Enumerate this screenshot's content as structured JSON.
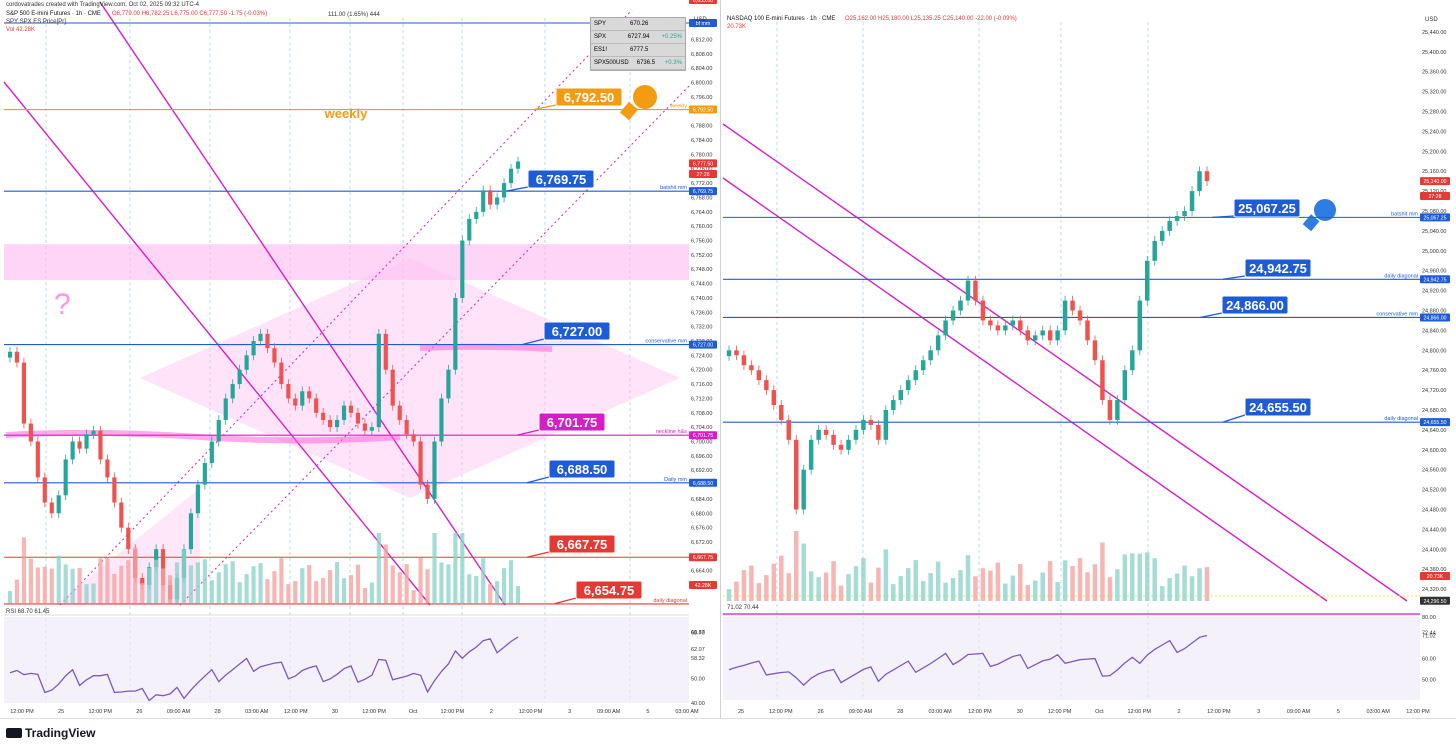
{
  "left": {
    "header": {
      "creator": "cordovatrades created with TradingView.com, Oct 02, 2025 09:32 UTC-4",
      "symbol": "S&P 500 E-mini Futures · 1h · CME",
      "ohlc": "O6,779.00 H6,782.25 L6,775.00 C6,777.50 -1.75 (-0.03%)",
      "indicator": "SPY SPX ES Price[Pr]",
      "vol": "Vol 42.28K",
      "range_note": "111.00 (1.65%) 444"
    },
    "price_axis_label": "USD",
    "table": [
      {
        "sym": "SPY",
        "val": "670.26",
        "chg": ""
      },
      {
        "sym": "SPX",
        "val": "6727.94",
        "chg": "+0.25%"
      },
      {
        "sym": "ES1!",
        "val": "6777.5",
        "chg": ""
      },
      {
        "sym": "SPX500USD",
        "val": "6736.5",
        "chg": "+0.3%"
      }
    ],
    "price_ticks": [
      "6,816.00",
      "6,812.00",
      "6,808.00",
      "6,804.00",
      "6,800.00",
      "6,796.00",
      "6,792.00",
      "6,788.00",
      "6,784.00",
      "6,780.00",
      "6,776.00",
      "6,772.00",
      "6,768.00",
      "6,764.00",
      "6,760.00",
      "6,756.00",
      "6,752.00",
      "6,748.00",
      "6,744.00",
      "6,740.00",
      "6,736.00",
      "6,732.00",
      "6,728.00",
      "6,724.00",
      "6,720.00",
      "6,716.00",
      "6,712.00",
      "6,708.00",
      "6,704.00",
      "6,700.00",
      "6,696.00",
      "6,692.00",
      "6,688.00",
      "6,684.00",
      "6,680.00",
      "6,676.00",
      "6,672.00",
      "6,668.00",
      "6,664.00",
      "6,660.00"
    ],
    "levels": [
      {
        "label": "6,792.50",
        "note": "weekly",
        "color": "#f39c12"
      },
      {
        "label": "6,769.75",
        "note": "batshit mm",
        "color": "#1e5bd6"
      },
      {
        "label": "6,727.00",
        "note": "conservative mm",
        "color": "#1e5bd6"
      },
      {
        "label": "6,701.75",
        "note": "neckline h&s",
        "color": "#d61ec7"
      },
      {
        "label": "6,688.50",
        "note": "Daily mm",
        "color": "#1e5bd6"
      },
      {
        "label": "6,667.75",
        "note": "",
        "color": "#e53935"
      },
      {
        "label": "6,654.75",
        "note": "daily diagonal",
        "color": "#e53935"
      }
    ],
    "axis_tags": [
      "bf mm",
      "6,792.50",
      "6,777.50",
      "27:28",
      "6,769.75",
      "6,727.00",
      "6,701.75",
      "6,688.50",
      "6,667.75",
      "42.28K",
      "6,655.00"
    ],
    "rsi_header": "RSI 68.70 61.45",
    "rsi_ticks": [
      "68.87",
      "68.70",
      "62.07",
      "58.32",
      "50.00",
      "40.00"
    ],
    "time_ticks": [
      "12:00 PM",
      "25",
      "12:00 PM",
      "26",
      "09:00 AM",
      "28",
      "03:00 AM",
      "12:00 PM",
      "30",
      "12:00 PM",
      "Oct",
      "12:00 PM",
      "2",
      "12:00 PM",
      "3",
      "09:00 AM",
      "5",
      "03:00 AM"
    ]
  },
  "right": {
    "header": {
      "symbol": "NASDAQ 100 E-mini Futures · 1h · CME",
      "ohlc": "O25,162.00 H25,180.00 L25,135.25 C25,140.00 -22.00 (-0.09%)",
      "vol": "20.73K"
    },
    "price_axis_label": "USD",
    "price_ticks": [
      "25,440.00",
      "25,400.00",
      "25,360.00",
      "25,320.00",
      "25,280.00",
      "25,240.00",
      "25,200.00",
      "25,160.00",
      "25,120.00",
      "25,080.00",
      "25,040.00",
      "25,000.00",
      "24,960.00",
      "24,920.00",
      "24,880.00",
      "24,840.00",
      "24,800.00",
      "24,760.00",
      "24,720.00",
      "24,680.00",
      "24,640.00",
      "24,600.00",
      "24,560.00",
      "24,520.00",
      "24,480.00",
      "24,440.00",
      "24,400.00",
      "24,360.00",
      "24,320.00"
    ],
    "levels": [
      {
        "label": "25,067.25",
        "note": "batshit mm",
        "color": "#1e5bd6"
      },
      {
        "label": "24,942.75",
        "note": "daily diagonal",
        "color": "#1e5bd6"
      },
      {
        "label": "24,866.00",
        "note": "conservative mm",
        "color": "#1e5bd6"
      },
      {
        "label": "24,655.50",
        "note": "daily diagonal",
        "color": "#1e5bd6"
      }
    ],
    "axis_tags": [
      "25,140.00",
      "27:28",
      "25,067.25",
      "24,942.75",
      "24,866.00",
      "24,655.50",
      "20.73K",
      "24,296.50"
    ],
    "rsi_header": "71.02 70.44",
    "rsi_ticks": [
      "80.00",
      "72.44",
      "71.02",
      "60.00",
      "50.00"
    ],
    "time_ticks": [
      "25",
      "12:00 PM",
      "26",
      "09:00 AM",
      "28",
      "03:00 AM",
      "12:00 PM",
      "30",
      "12:00 PM",
      "Oct",
      "12:00 PM",
      "2",
      "12:00 PM",
      "3",
      "09:00 AM",
      "5",
      "03:00 AM",
      "12:00 PM"
    ]
  },
  "footer": {
    "brand": "TradingView"
  },
  "chart_data": [
    {
      "type": "candlestick",
      "title": "S&P 500 E-mini Futures · 1h · CME",
      "ylim": [
        6655,
        6818
      ],
      "horizontal_levels": [
        6792.5,
        6769.75,
        6727.0,
        6701.75,
        6688.5,
        6667.75,
        6654.75
      ],
      "closes": [
        6725,
        6722,
        6705,
        6700,
        6690,
        6683,
        6680,
        6685,
        6695,
        6700,
        6698,
        6702,
        6703,
        6695,
        6690,
        6683,
        6676,
        6670,
        6662,
        6660,
        6665,
        6670,
        6660,
        6656,
        6662,
        6670,
        6680,
        6688,
        6694,
        6700,
        6706,
        6712,
        6716,
        6720,
        6724,
        6728,
        6730,
        6726,
        6722,
        6716,
        6712,
        6710,
        6714,
        6712,
        6708,
        6706,
        6704,
        6706,
        6710,
        6708,
        6705,
        6703,
        6704,
        6730,
        6720,
        6710,
        6706,
        6702,
        6700,
        6688,
        6684,
        6700,
        6712,
        6720,
        6740,
        6756,
        6762,
        6764,
        6770,
        6766,
        6768,
        6772,
        6776,
        6778
      ],
      "rsi_range": [
        40,
        75
      ]
    },
    {
      "type": "candlestick",
      "title": "NASDAQ 100 E-mini Futures · 1h · CME",
      "ylim": [
        24296,
        25460
      ],
      "horizontal_levels": [
        25067.25,
        24942.75,
        24866.0,
        24655.5
      ],
      "closes": [
        24800,
        24790,
        24770,
        24760,
        24740,
        24720,
        24690,
        24660,
        24620,
        24480,
        24560,
        24620,
        24640,
        24630,
        24610,
        24600,
        24620,
        24640,
        24660,
        24650,
        24620,
        24680,
        24700,
        24720,
        24740,
        24760,
        24780,
        24800,
        24830,
        24860,
        24880,
        24900,
        24940,
        24900,
        24860,
        24850,
        24840,
        24850,
        24860,
        24840,
        24820,
        24830,
        24840,
        24820,
        24840,
        24900,
        24880,
        24860,
        24820,
        24780,
        24700,
        24660,
        24700,
        24760,
        24800,
        24900,
        24980,
        25020,
        25040,
        25060,
        25070,
        25080,
        25120,
        25160,
        25140
      ],
      "rsi_range": [
        40,
        80
      ]
    }
  ]
}
